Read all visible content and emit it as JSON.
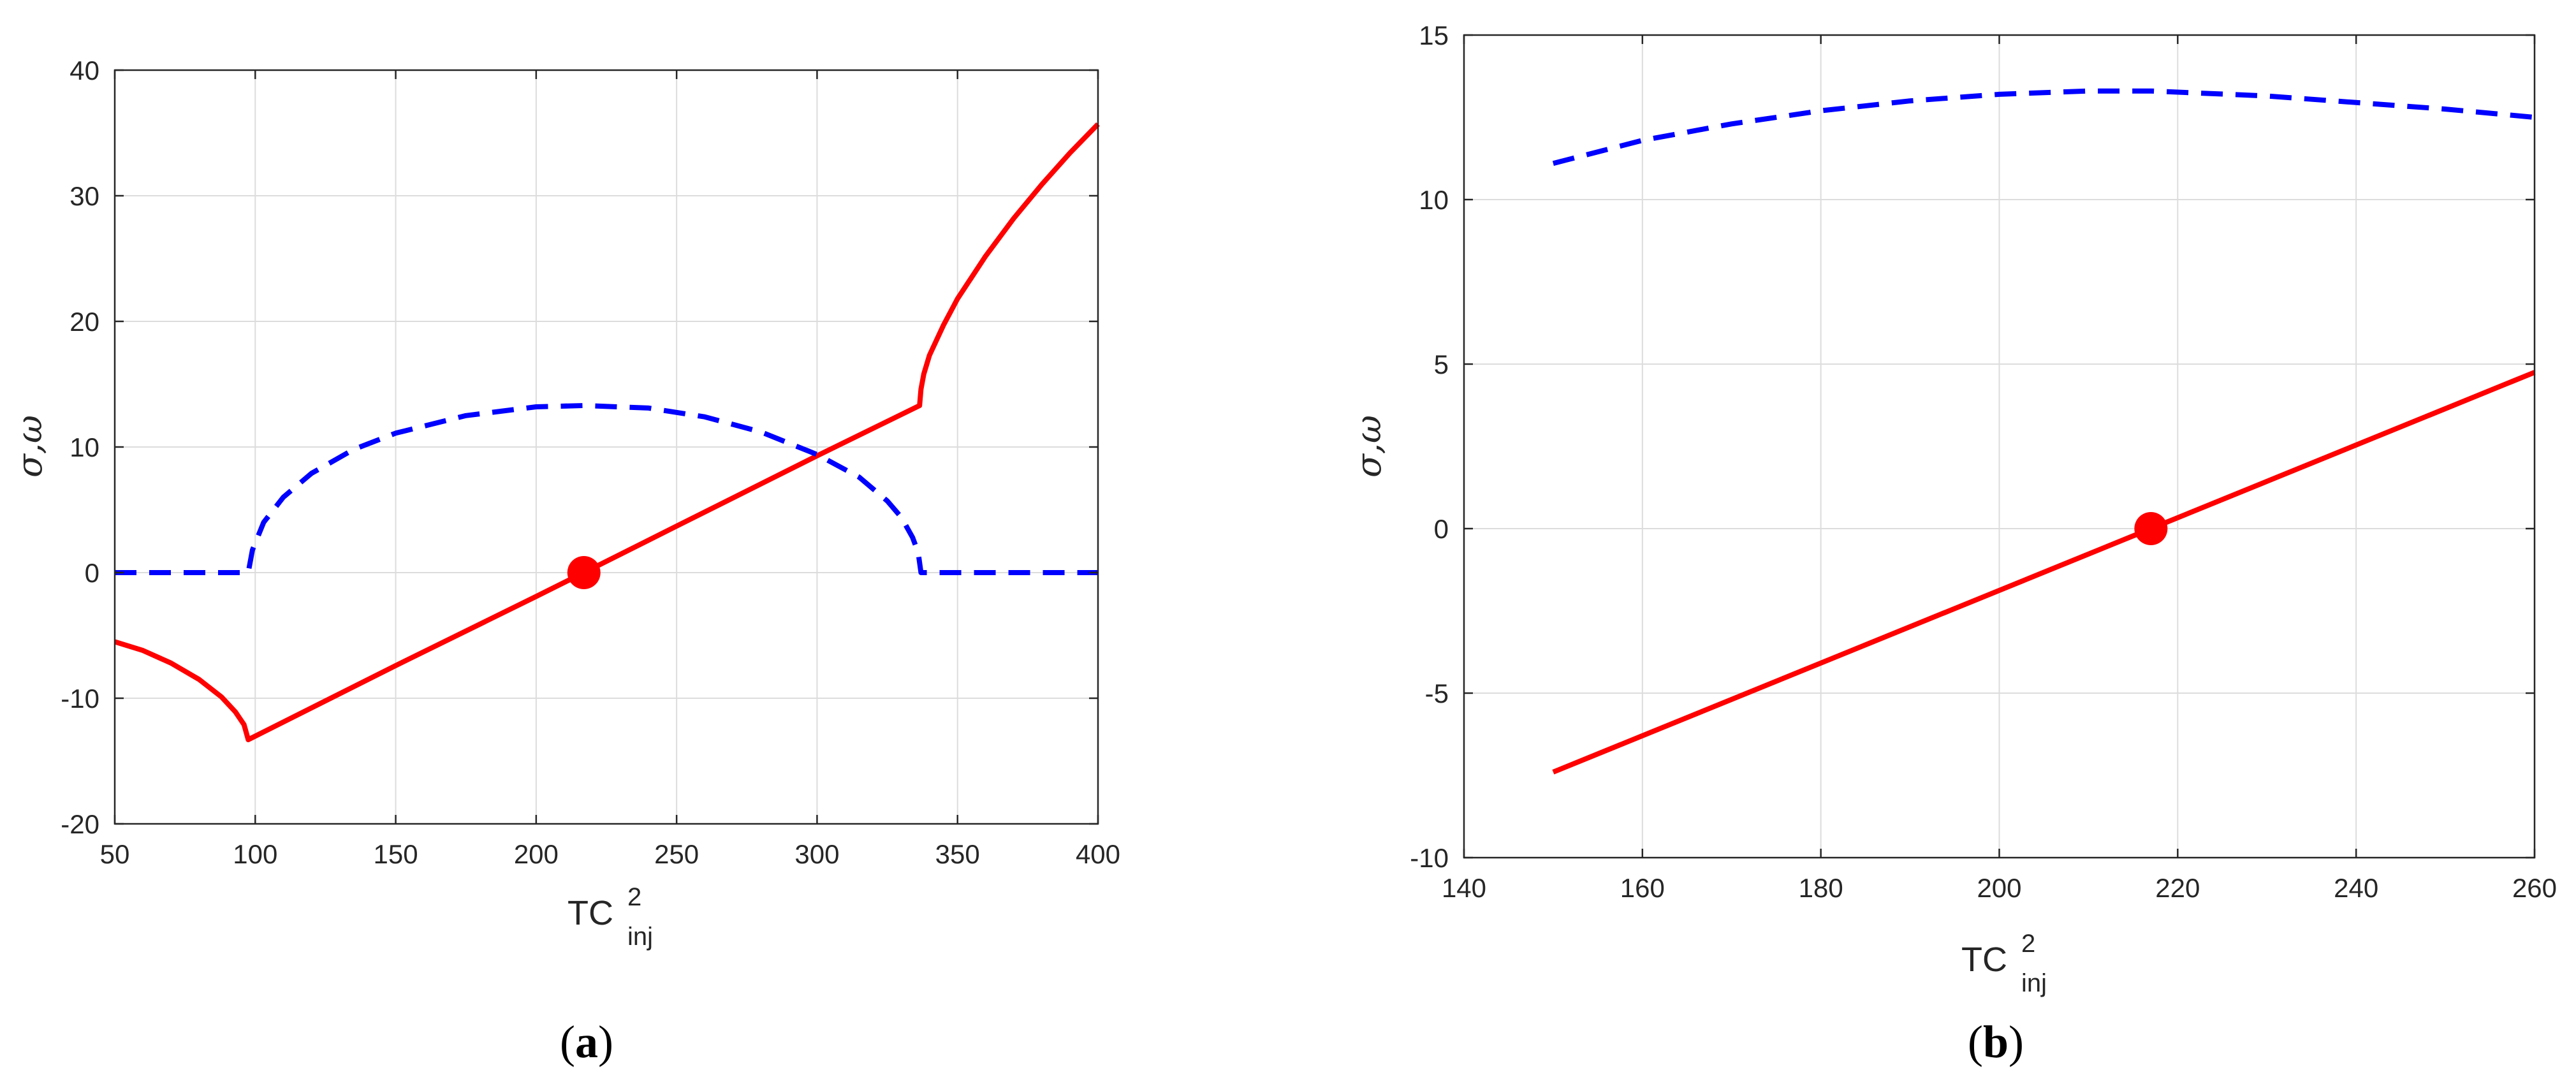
{
  "colors": {
    "red": "#ff0000",
    "blue": "#0000ff",
    "axis": "#262626",
    "grid": "#dcdcdc"
  },
  "chart_data": [
    {
      "type": "line",
      "caption": "a",
      "xlabel_main": "TC",
      "xlabel_sup": "2",
      "xlabel_sub": "inj",
      "ylabel": "σ,ω",
      "xlim": [
        50,
        400
      ],
      "ylim": [
        -20,
        40
      ],
      "xticks": [
        50,
        100,
        150,
        200,
        250,
        300,
        350,
        400
      ],
      "yticks": [
        -20,
        -10,
        0,
        10,
        20,
        30,
        40
      ],
      "grid": true,
      "series": [
        {
          "style": "solid",
          "color": "#ff0000",
          "x": [
            50,
            60,
            70,
            80,
            88,
            93,
            96,
            97.5,
            97.5,
            150,
            200,
            217,
            250,
            300,
            336.5,
            336.5,
            337,
            338,
            340,
            345,
            350,
            360,
            370,
            380,
            390,
            400
          ],
          "y": [
            -5.5,
            -6.2,
            -7.2,
            -8.5,
            -9.9,
            -11.1,
            -12.1,
            -13.3,
            -13.3,
            -7.4,
            -1.9,
            0,
            3.7,
            9.3,
            13.3,
            13.3,
            14.6,
            15.8,
            17.3,
            19.7,
            21.8,
            25.2,
            28.2,
            30.9,
            33.4,
            35.7
          ]
        },
        {
          "style": "dashed",
          "color": "#0000ff",
          "x": [
            50,
            96,
            97.5,
            99,
            103,
            110,
            120,
            135,
            150,
            175,
            200,
            217,
            240,
            260,
            280,
            300,
            315,
            325,
            330,
            334,
            336,
            337,
            340,
            360,
            400
          ],
          "y": [
            0,
            0,
            0,
            1.8,
            4.0,
            6.0,
            7.9,
            9.8,
            11.1,
            12.5,
            13.2,
            13.3,
            13.1,
            12.4,
            11.2,
            9.4,
            7.6,
            5.7,
            4.4,
            2.8,
            1.6,
            0,
            0,
            0,
            0
          ]
        }
      ],
      "points": [
        {
          "x": 217,
          "y": 0,
          "color": "#ff0000"
        }
      ]
    },
    {
      "type": "line",
      "caption": "b",
      "xlabel_main": "TC",
      "xlabel_sup": "2",
      "xlabel_sub": "inj",
      "ylabel": "σ,ω",
      "xlim": [
        140,
        260
      ],
      "ylim": [
        -10,
        15
      ],
      "xticks": [
        140,
        160,
        180,
        200,
        220,
        240,
        260
      ],
      "yticks": [
        -10,
        -5,
        0,
        5,
        10,
        15
      ],
      "grid": true,
      "series": [
        {
          "style": "solid",
          "color": "#ff0000",
          "x": [
            150,
            217,
            260
          ],
          "y": [
            -7.4,
            0,
            4.75
          ]
        },
        {
          "style": "dashed",
          "color": "#0000ff",
          "x": [
            150,
            160,
            170,
            180,
            190,
            200,
            210,
            217,
            230,
            240,
            250,
            260
          ],
          "y": [
            11.1,
            11.8,
            12.3,
            12.7,
            13.0,
            13.2,
            13.3,
            13.3,
            13.15,
            12.95,
            12.75,
            12.5
          ]
        }
      ],
      "points": [
        {
          "x": 217,
          "y": 0,
          "color": "#ff0000"
        }
      ]
    }
  ]
}
